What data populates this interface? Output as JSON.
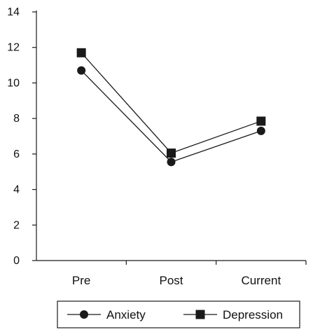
{
  "chart_data": {
    "type": "line",
    "title": "",
    "xlabel": "",
    "ylabel": "",
    "categories": [
      "Pre",
      "Post",
      "Current"
    ],
    "ylim": [
      0,
      14
    ],
    "yticks": [
      0,
      2,
      4,
      6,
      8,
      10,
      12,
      14
    ],
    "grid": false,
    "legend_position": "bottom",
    "series": [
      {
        "name": "Anxiety",
        "marker": "circle",
        "color": "#1a1a1a",
        "values": [
          10.7,
          5.55,
          7.3
        ]
      },
      {
        "name": "Depression",
        "marker": "square",
        "color": "#1a1a1a",
        "values": [
          11.7,
          6.05,
          7.85
        ]
      }
    ]
  }
}
